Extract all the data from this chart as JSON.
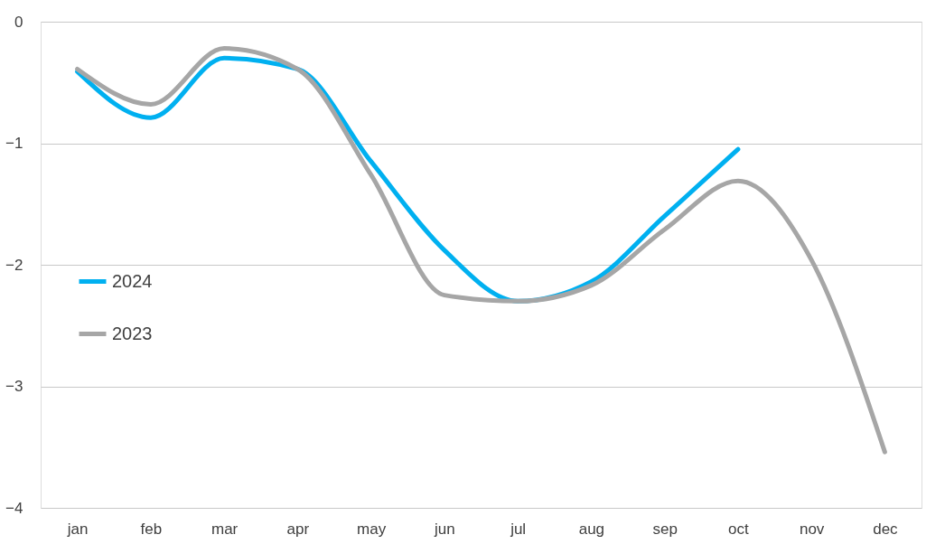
{
  "chart_data": {
    "type": "line",
    "categories": [
      "jan",
      "feb",
      "mar",
      "apr",
      "may",
      "jun",
      "jul",
      "aug",
      "sep",
      "oct",
      "nov",
      "dec"
    ],
    "series": [
      {
        "name": "2024",
        "color": "#00b0f0",
        "values": [
          -0.41,
          -0.79,
          -0.3,
          -0.39,
          -1.15,
          -1.88,
          -2.3,
          -2.14,
          -1.6,
          -1.05,
          null,
          null
        ]
      },
      {
        "name": "2023",
        "color": "#a6a6a6",
        "values": [
          -0.39,
          -0.68,
          -0.22,
          -0.39,
          -1.26,
          -2.25,
          -2.3,
          -2.17,
          -1.71,
          -1.31,
          -1.96,
          -3.54
        ]
      }
    ],
    "ylim": [
      -4,
      0
    ],
    "yticks": [
      -4,
      -3,
      -2,
      -1,
      0
    ],
    "grid": "y",
    "legend": "left",
    "marker": "none",
    "line_style": "solid"
  }
}
